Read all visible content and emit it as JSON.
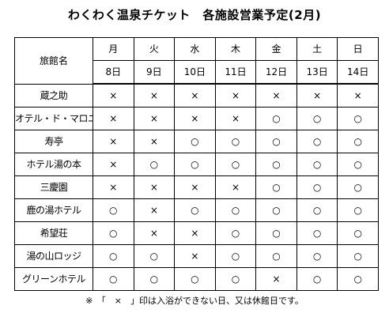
{
  "title": "わくわく温泉チケット　各施設営業予定(2月)",
  "header": {
    "name_label": "旅館名",
    "days": [
      "月",
      "火",
      "水",
      "木",
      "金",
      "土",
      "日"
    ],
    "dates": [
      "8日",
      "9日",
      "10日",
      "11日",
      "12日",
      "13日",
      "14日"
    ]
  },
  "rows": [
    {
      "name": "蔵之助",
      "marks": [
        "×",
        "×",
        "×",
        "×",
        "×",
        "×",
        "×"
      ]
    },
    {
      "name": "オテル・ド・マロニエ",
      "marks": [
        "×",
        "×",
        "×",
        "×",
        "○",
        "○",
        "○"
      ]
    },
    {
      "name": "寿亭",
      "marks": [
        "×",
        "×",
        "○",
        "○",
        "○",
        "○",
        "○"
      ]
    },
    {
      "name": "ホテル湯の本",
      "marks": [
        "×",
        "○",
        "○",
        "○",
        "○",
        "○",
        "○"
      ]
    },
    {
      "name": "三慶園",
      "marks": [
        "×",
        "×",
        "×",
        "×",
        "○",
        "○",
        "○"
      ]
    },
    {
      "name": "鹿の湯ホテル",
      "marks": [
        "○",
        "×",
        "○",
        "○",
        "○",
        "○",
        "○"
      ]
    },
    {
      "name": "希望荘",
      "marks": [
        "○",
        "×",
        "×",
        "○",
        "○",
        "○",
        "○"
      ]
    },
    {
      "name": "湯の山ロッジ",
      "marks": [
        "○",
        "○",
        "×",
        "○",
        "○",
        "○",
        "○"
      ]
    },
    {
      "name": "グリーンホテル",
      "marks": [
        "○",
        "○",
        "○",
        "○",
        "×",
        "○",
        "○"
      ]
    }
  ],
  "note": "※　「　×　」印は入浴ができない日、又は休館日です。"
}
